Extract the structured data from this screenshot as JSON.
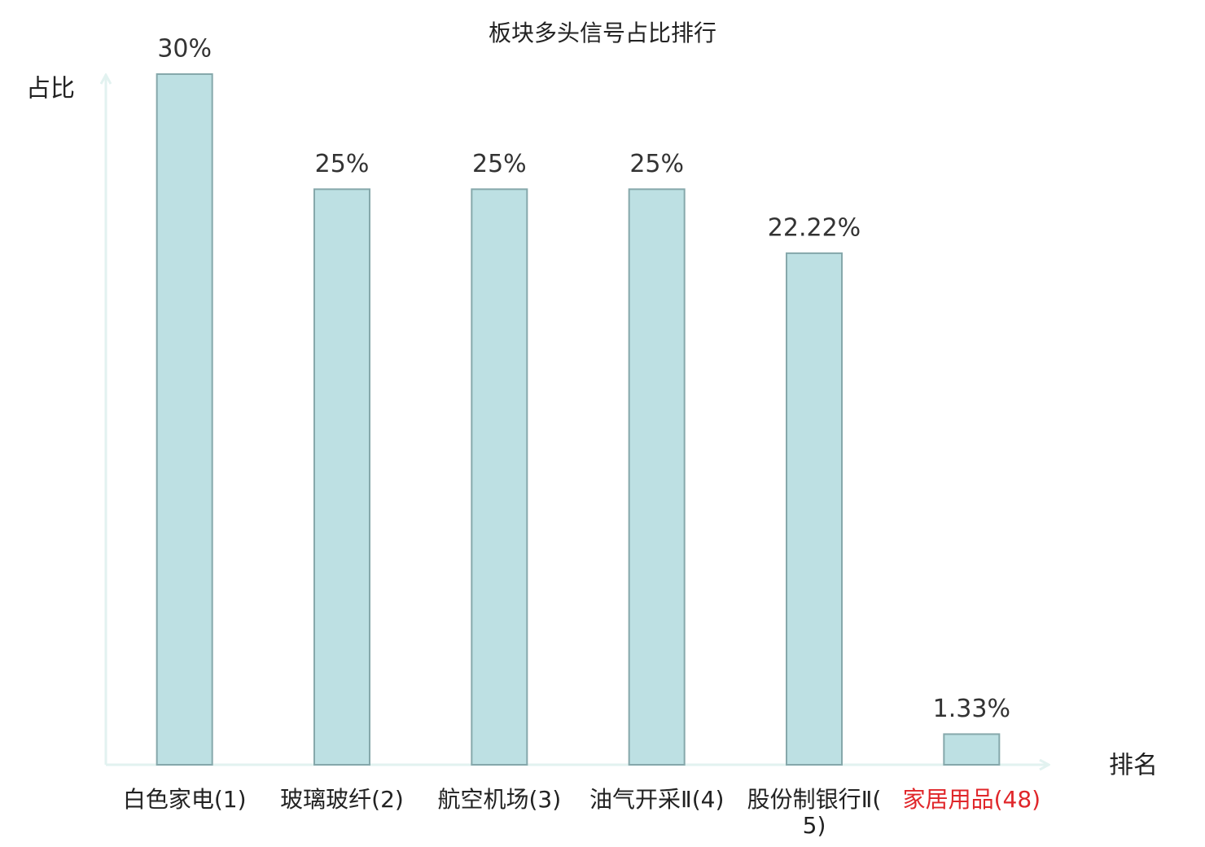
{
  "chart_data": {
    "type": "bar",
    "title": "板块多头信号占比排行",
    "y_label": "占比",
    "x_label": "排名",
    "categories": [
      "白色家电(1)",
      "玻璃玻纤(2)",
      "航空机场(3)",
      "油气开采Ⅱ(4)",
      "股份制银行Ⅱ(5)",
      "家居用品(48)"
    ],
    "values": [
      30,
      25,
      25,
      25,
      22.22,
      1.33
    ],
    "value_labels": [
      "30%",
      "25%",
      "25%",
      "25%",
      "22.22%",
      "1.33%"
    ],
    "color": "#bde0e3",
    "ylim": [
      0,
      30
    ],
    "highlight": {
      "index": 5,
      "color": "#e0262a"
    }
  }
}
